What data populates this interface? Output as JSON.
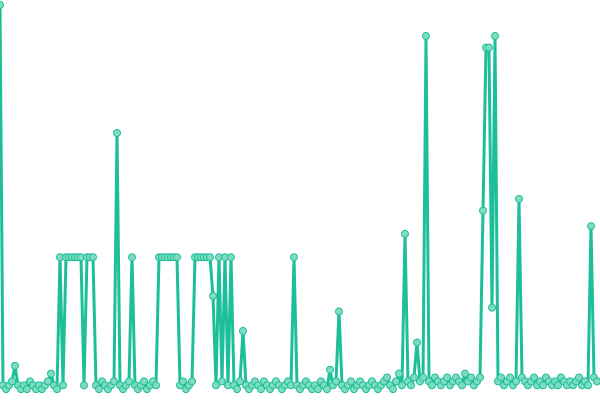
{
  "chart_data": {
    "type": "line",
    "title": "",
    "xlabel": "",
    "ylabel": "",
    "axes_visible": false,
    "grid": false,
    "legend": "none",
    "ylim": [
      0,
      100
    ],
    "colors": {
      "line": "#1dbf9a",
      "marker_fill": "#7fdcc0",
      "marker_stroke": "#1dbf9a"
    },
    "series": [
      {
        "values": [
          100,
          2,
          1,
          2,
          3,
          7,
          2,
          1,
          2,
          1,
          3,
          2,
          1,
          2,
          1,
          2,
          3,
          5,
          2,
          1,
          35,
          2,
          35,
          35,
          35,
          35,
          35,
          35,
          2,
          35,
          35,
          35,
          2,
          1,
          3,
          2,
          1,
          2,
          3,
          67,
          2,
          1,
          2,
          3,
          35,
          2,
          1,
          2,
          3,
          1,
          2,
          3,
          2,
          35,
          35,
          35,
          35,
          35,
          35,
          35,
          2,
          3,
          1,
          2,
          3,
          35,
          35,
          35,
          35,
          35,
          35,
          25,
          2,
          35,
          3,
          35,
          2,
          35,
          2,
          1,
          3,
          16,
          2,
          1,
          2,
          3,
          2,
          1,
          3,
          2,
          1,
          2,
          3,
          2,
          1,
          2,
          3,
          2,
          35,
          2,
          1,
          2,
          3,
          2,
          1,
          2,
          1,
          3,
          2,
          1,
          6,
          2,
          3,
          21,
          2,
          1,
          2,
          3,
          1,
          2,
          3,
          2,
          1,
          2,
          3,
          2,
          1,
          2,
          3,
          4,
          2,
          1,
          3,
          5,
          2,
          41,
          3,
          2,
          4,
          13,
          3,
          4,
          92,
          3,
          2,
          4,
          3,
          2,
          3,
          4,
          2,
          3,
          4,
          3,
          2,
          5,
          3,
          4,
          2,
          3,
          4,
          47,
          89,
          89,
          22,
          92,
          3,
          4,
          2,
          3,
          4,
          2,
          3,
          50,
          4,
          3,
          2,
          3,
          4,
          2,
          3,
          2,
          4,
          3,
          2,
          3,
          2,
          4,
          3,
          2,
          3,
          2,
          3,
          4,
          2,
          3,
          2,
          43,
          4,
          3
        ]
      }
    ]
  }
}
